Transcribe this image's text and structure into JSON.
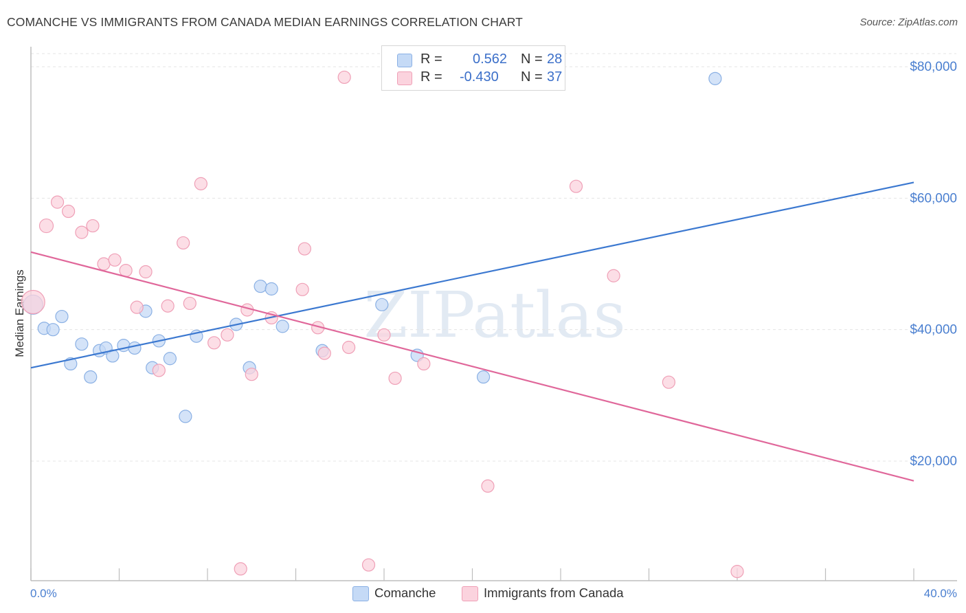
{
  "title": "COMANCHE VS IMMIGRANTS FROM CANADA MEDIAN EARNINGS CORRELATION CHART",
  "source": "Source: ZipAtlas.com",
  "watermark": "ZIPatlas",
  "legend": {
    "r_label": "R =",
    "n_label": "N =",
    "rows": [
      {
        "r": "0.562",
        "n": "28",
        "color": "#a8c8f0"
      },
      {
        "r": "-0.430",
        "n": "37",
        "color": "#f6b8c8"
      }
    ]
  },
  "colors": {
    "comanche_fill": "#c5daf6",
    "comanche_stroke": "#8ab0e4",
    "comanche_line": "#3b78d0",
    "canada_fill": "#fbd3de",
    "canada_stroke": "#ef9fb6",
    "canada_line": "#e0679a",
    "axis_text": "#4a7fd0"
  },
  "chart_data": {
    "type": "scatter",
    "title": "COMANCHE VS IMMIGRANTS FROM CANADA MEDIAN EARNINGS CORRELATION CHART",
    "xlabel": "",
    "ylabel": "Median Earnings",
    "xlim": [
      0,
      40
    ],
    "ylim": [
      1800,
      82000
    ],
    "x_tick_labels": [
      "0.0%",
      "40.0%"
    ],
    "y_ticks": [
      20000,
      40000,
      60000,
      80000
    ],
    "y_tick_labels": [
      "$20,000",
      "$40,000",
      "$60,000",
      "$80,000"
    ],
    "grid": true,
    "legend_position": "top-center",
    "series": [
      {
        "name": "Comanche",
        "r": 0.562,
        "n": 28,
        "trend": [
          [
            0,
            34200
          ],
          [
            40,
            62400
          ]
        ],
        "points": [
          {
            "x": 0.1,
            "y": 43800,
            "s": 14
          },
          {
            "x": 0.6,
            "y": 40200,
            "s": 9
          },
          {
            "x": 1.0,
            "y": 40000,
            "s": 9
          },
          {
            "x": 1.4,
            "y": 42000,
            "s": 9
          },
          {
            "x": 1.8,
            "y": 34800,
            "s": 9
          },
          {
            "x": 2.3,
            "y": 37800,
            "s": 9
          },
          {
            "x": 2.7,
            "y": 32800,
            "s": 9
          },
          {
            "x": 3.1,
            "y": 36800,
            "s": 9
          },
          {
            "x": 3.4,
            "y": 37200,
            "s": 9
          },
          {
            "x": 3.7,
            "y": 36000,
            "s": 9
          },
          {
            "x": 4.2,
            "y": 37600,
            "s": 9
          },
          {
            "x": 4.7,
            "y": 37200,
            "s": 9
          },
          {
            "x": 5.2,
            "y": 42800,
            "s": 9
          },
          {
            "x": 5.5,
            "y": 34200,
            "s": 9
          },
          {
            "x": 5.8,
            "y": 38300,
            "s": 9
          },
          {
            "x": 6.3,
            "y": 35600,
            "s": 9
          },
          {
            "x": 7.0,
            "y": 26800,
            "s": 9
          },
          {
            "x": 7.5,
            "y": 39000,
            "s": 9
          },
          {
            "x": 9.3,
            "y": 40800,
            "s": 9
          },
          {
            "x": 9.9,
            "y": 34200,
            "s": 9
          },
          {
            "x": 10.4,
            "y": 46600,
            "s": 9
          },
          {
            "x": 10.9,
            "y": 46200,
            "s": 9
          },
          {
            "x": 11.4,
            "y": 40500,
            "s": 9
          },
          {
            "x": 13.2,
            "y": 36800,
            "s": 9
          },
          {
            "x": 15.9,
            "y": 43800,
            "s": 9
          },
          {
            "x": 17.5,
            "y": 36100,
            "s": 9
          },
          {
            "x": 20.5,
            "y": 32800,
            "s": 9
          },
          {
            "x": 31.0,
            "y": 78200,
            "s": 9
          }
        ]
      },
      {
        "name": "Immigrants from Canada",
        "r": -0.43,
        "n": 37,
        "trend": [
          [
            0,
            51800
          ],
          [
            40,
            17000
          ]
        ],
        "points": [
          {
            "x": 0.1,
            "y": 44200,
            "s": 17
          },
          {
            "x": 0.7,
            "y": 55800,
            "s": 10
          },
          {
            "x": 1.2,
            "y": 59400,
            "s": 9
          },
          {
            "x": 1.7,
            "y": 58000,
            "s": 9
          },
          {
            "x": 2.3,
            "y": 54800,
            "s": 9
          },
          {
            "x": 2.8,
            "y": 55800,
            "s": 9
          },
          {
            "x": 3.3,
            "y": 50000,
            "s": 9
          },
          {
            "x": 3.8,
            "y": 50600,
            "s": 9
          },
          {
            "x": 4.3,
            "y": 49000,
            "s": 9
          },
          {
            "x": 4.8,
            "y": 43400,
            "s": 9
          },
          {
            "x": 5.2,
            "y": 48800,
            "s": 9
          },
          {
            "x": 5.8,
            "y": 33800,
            "s": 9
          },
          {
            "x": 6.2,
            "y": 43600,
            "s": 9
          },
          {
            "x": 6.9,
            "y": 53200,
            "s": 9
          },
          {
            "x": 7.2,
            "y": 44000,
            "s": 9
          },
          {
            "x": 7.7,
            "y": 62200,
            "s": 9
          },
          {
            "x": 8.3,
            "y": 38000,
            "s": 9
          },
          {
            "x": 8.9,
            "y": 39200,
            "s": 9
          },
          {
            "x": 9.5,
            "y": 3600,
            "s": 9
          },
          {
            "x": 9.8,
            "y": 43000,
            "s": 9
          },
          {
            "x": 10.0,
            "y": 33200,
            "s": 9
          },
          {
            "x": 10.9,
            "y": 41800,
            "s": 9
          },
          {
            "x": 12.3,
            "y": 46100,
            "s": 9
          },
          {
            "x": 12.4,
            "y": 52300,
            "s": 9
          },
          {
            "x": 13.0,
            "y": 40300,
            "s": 9
          },
          {
            "x": 13.3,
            "y": 36400,
            "s": 9
          },
          {
            "x": 14.2,
            "y": 78400,
            "s": 9
          },
          {
            "x": 14.4,
            "y": 37300,
            "s": 9
          },
          {
            "x": 15.3,
            "y": 4200,
            "s": 9
          },
          {
            "x": 16.0,
            "y": 39200,
            "s": 9
          },
          {
            "x": 16.5,
            "y": 32600,
            "s": 9
          },
          {
            "x": 17.8,
            "y": 34800,
            "s": 9
          },
          {
            "x": 20.7,
            "y": 16200,
            "s": 9
          },
          {
            "x": 24.7,
            "y": 61800,
            "s": 9
          },
          {
            "x": 26.4,
            "y": 48200,
            "s": 9
          },
          {
            "x": 28.9,
            "y": 32000,
            "s": 9
          },
          {
            "x": 32.0,
            "y": 3200,
            "s": 9
          }
        ]
      }
    ]
  }
}
